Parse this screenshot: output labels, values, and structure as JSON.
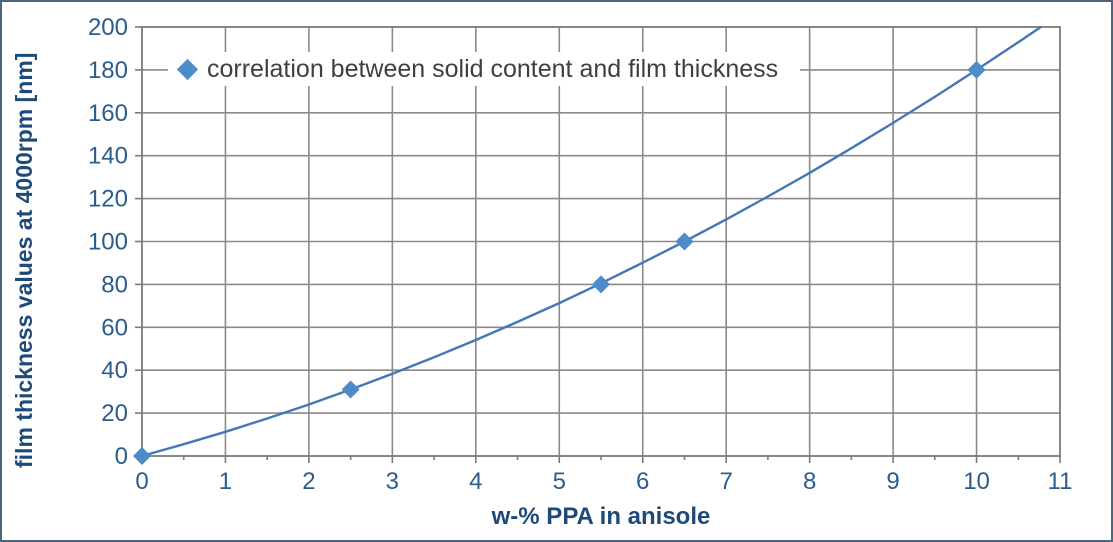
{
  "chart_data": {
    "type": "scatter",
    "line_style": "smooth",
    "title": "",
    "legend": "correlation between solid content and film thickness",
    "legend_position": "top-inside",
    "xlabel": "w-% PPA in anisole",
    "ylabel": "film thickness values at 4000rpm [nm]",
    "xlim": [
      0,
      11
    ],
    "ylim": [
      0,
      200
    ],
    "x_ticks": [
      0,
      1,
      2,
      3,
      4,
      5,
      6,
      7,
      8,
      9,
      10,
      11
    ],
    "x_minor_tick_step": 0.5,
    "y_ticks": [
      0,
      20,
      40,
      60,
      80,
      100,
      120,
      140,
      160,
      180,
      200
    ],
    "grid": true,
    "points": [
      [
        0,
        0
      ],
      [
        2.5,
        31
      ],
      [
        5.5,
        80
      ],
      [
        6.5,
        100
      ],
      [
        10,
        180
      ]
    ],
    "smooth_curve": [
      [
        0,
        0
      ],
      [
        0.5,
        5.5
      ],
      [
        1,
        11.3
      ],
      [
        1.5,
        17.5
      ],
      [
        2,
        24.0
      ],
      [
        2.5,
        31.0
      ],
      [
        3,
        38.3
      ],
      [
        3.5,
        46.0
      ],
      [
        4,
        54.1
      ],
      [
        4.5,
        62.5
      ],
      [
        5,
        71.3
      ],
      [
        5.5,
        80.5
      ],
      [
        6,
        90.1
      ],
      [
        6.5,
        100.0
      ],
      [
        7,
        110.3
      ],
      [
        7.5,
        121.0
      ],
      [
        8,
        132.0
      ],
      [
        8.5,
        143.5
      ],
      [
        9,
        155.3
      ],
      [
        9.5,
        167.4
      ],
      [
        10,
        180.0
      ],
      [
        10.5,
        192.9
      ],
      [
        10.77,
        200.0
      ]
    ],
    "colors": {
      "line": "#4478B4",
      "marker": "#4D8BC9",
      "grid": "#8A8A8A",
      "axis": "#7A7A7A",
      "tick_label": "#2D5C8C",
      "axis_title": "#1F4977",
      "legend_text": "#3F3F3F",
      "figure_border": "#4C657D",
      "background": "#FFFFFF"
    }
  }
}
